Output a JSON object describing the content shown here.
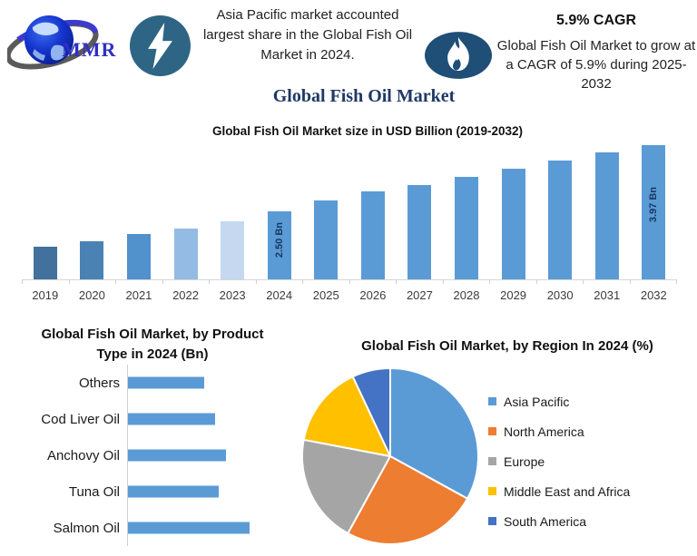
{
  "brand": {
    "logo_text": "MMR"
  },
  "header": {
    "highlight": "Asia Pacific market accounted largest share in the Global Fish Oil Market in 2024.",
    "cagr_title": "5.9% CAGR",
    "cagr_text": "Global Fish Oil Market to grow at a CAGR of 5.9% during 2025-2032"
  },
  "main_title": "Global Fish Oil Market",
  "colors": {
    "accent_blue": "#5B9BD5",
    "title_navy": "#1F3864",
    "bolt_circle": "#2E6584",
    "flame_ellipse": "#1F4E77",
    "logo_text_blue": "#2F2FC4",
    "bar_label_navy": "#17375E"
  },
  "chart_data": [
    {
      "type": "bar",
      "title": "Global Fish Oil Market size in USD Billion (2019-2032)",
      "ylabel": "USD Billion",
      "categories": [
        "2019",
        "2020",
        "2021",
        "2022",
        "2023",
        "2024",
        "2025",
        "2026",
        "2027",
        "2028",
        "2029",
        "2030",
        "2031",
        "2032"
      ],
      "values": [
        1.73,
        1.85,
        2.0,
        2.13,
        2.29,
        2.5,
        2.74,
        2.95,
        3.09,
        3.26,
        3.45,
        3.63,
        3.8,
        3.97
      ],
      "ylim": [
        1.0,
        4.2
      ],
      "grid": false,
      "bar_colors": [
        "#41719C",
        "#4A82B4",
        "#5191CC",
        "#94BBE3",
        "#C6D8EF",
        "#5B9BD5",
        "#5B9BD5",
        "#5B9BD5",
        "#5B9BD5",
        "#5B9BD5",
        "#5B9BD5",
        "#5B9BD5",
        "#5B9BD5",
        "#5B9BD5"
      ],
      "data_labels": {
        "2024": "2.50 Bn",
        "2032": "3.97 Bn"
      }
    },
    {
      "type": "bar",
      "orientation": "horizontal",
      "title": "Global Fish Oil Market, by Product Type in 2024 (Bn)",
      "categories": [
        "Others",
        "Cod Liver Oil",
        "Anchovy Oil",
        "Tuna Oil",
        "Salmon Oil"
      ],
      "values": [
        0.42,
        0.48,
        0.54,
        0.5,
        0.67
      ],
      "xlim": [
        0,
        1.0
      ],
      "bar_color": "#5B9BD5"
    },
    {
      "type": "pie",
      "title": "Global Fish Oil Market, by Region In 2024 (%)",
      "labels": [
        "Asia Pacific",
        "North America",
        "Europe",
        "Middle East and Africa",
        "South America"
      ],
      "values": [
        33,
        25,
        20,
        15,
        7
      ],
      "colors": [
        "#5B9BD5",
        "#ED7D31",
        "#A5A5A5",
        "#FFC000",
        "#4472C4"
      ],
      "legend_position": "right",
      "start_angle_deg": 0,
      "direction": "clockwise"
    }
  ]
}
